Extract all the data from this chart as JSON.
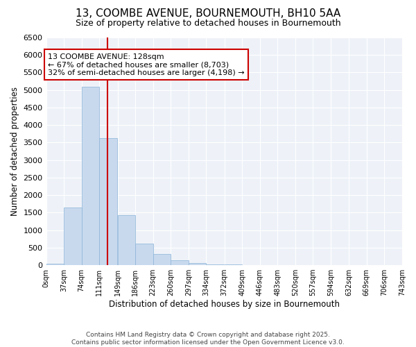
{
  "title1": "13, COOMBE AVENUE, BOURNEMOUTH, BH10 5AA",
  "title2": "Size of property relative to detached houses in Bournemouth",
  "xlabel": "Distribution of detached houses by size in Bournemouth",
  "ylabel": "Number of detached properties",
  "bin_edges": [
    0,
    37,
    74,
    111,
    149,
    186,
    223,
    260,
    297,
    334,
    372,
    409,
    446,
    483,
    520,
    557,
    594,
    632,
    669,
    706,
    743
  ],
  "bar_heights": [
    50,
    1650,
    5100,
    3620,
    1430,
    620,
    320,
    150,
    70,
    30,
    15,
    5,
    3,
    2,
    1,
    1,
    1,
    1,
    1,
    1
  ],
  "bar_color": "#c8d9ee",
  "bar_edge_color": "#8ab4d8",
  "property_size": 128,
  "vline_color": "#cc0000",
  "annotation_line1": "13 COOMBE AVENUE: 128sqm",
  "annotation_line2": "← 67% of detached houses are smaller (8,703)",
  "annotation_line3": "32% of semi-detached houses are larger (4,198) →",
  "annotation_box_color": "#cc0000",
  "ylim": [
    0,
    6500
  ],
  "yticks": [
    0,
    500,
    1000,
    1500,
    2000,
    2500,
    3000,
    3500,
    4000,
    4500,
    5000,
    5500,
    6000,
    6500
  ],
  "bg_color": "#eef2f8",
  "grid_color": "#ffffff",
  "footer_text": "Contains HM Land Registry data © Crown copyright and database right 2025.\nContains public sector information licensed under the Open Government Licence v3.0.",
  "tick_labels": [
    "0sqm",
    "37sqm",
    "74sqm",
    "111sqm",
    "149sqm",
    "186sqm",
    "223sqm",
    "260sqm",
    "297sqm",
    "334sqm",
    "372sqm",
    "409sqm",
    "446sqm",
    "483sqm",
    "520sqm",
    "557sqm",
    "594sqm",
    "632sqm",
    "669sqm",
    "706sqm",
    "743sqm"
  ]
}
